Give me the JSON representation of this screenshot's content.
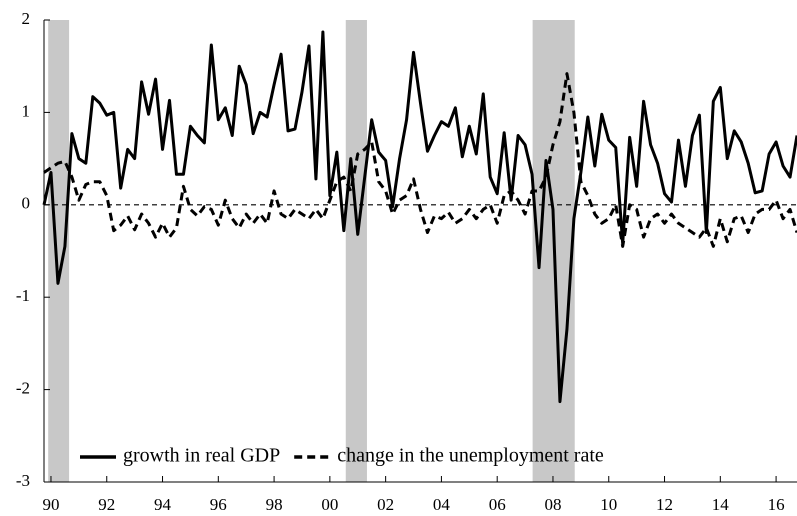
{
  "chart_data": {
    "type": "line",
    "x": [
      1989.75,
      1990,
      1990.25,
      1990.5,
      1990.75,
      1991,
      1991.25,
      1991.5,
      1991.75,
      1992,
      1992.25,
      1992.5,
      1992.75,
      1993,
      1993.25,
      1993.5,
      1993.75,
      1994,
      1994.25,
      1994.5,
      1994.75,
      1995,
      1995.25,
      1995.5,
      1995.75,
      1996,
      1996.25,
      1996.5,
      1996.75,
      1997,
      1997.25,
      1997.5,
      1997.75,
      1998,
      1998.25,
      1998.5,
      1998.75,
      1999,
      1999.25,
      1999.5,
      1999.75,
      2000,
      2000.25,
      2000.5,
      2000.75,
      2001,
      2001.25,
      2001.5,
      2001.75,
      2002,
      2002.25,
      2002.5,
      2002.75,
      2003,
      2003.25,
      2003.5,
      2003.75,
      2004,
      2004.25,
      2004.5,
      2004.75,
      2005,
      2005.25,
      2005.5,
      2005.75,
      2006,
      2006.25,
      2006.5,
      2006.75,
      2007,
      2007.25,
      2007.5,
      2007.75,
      2008,
      2008.25,
      2008.5,
      2008.75,
      2009,
      2009.25,
      2009.5,
      2009.75,
      2010,
      2010.25,
      2010.5,
      2010.75,
      2011,
      2011.25,
      2011.5,
      2011.75,
      2012,
      2012.25,
      2012.5,
      2012.75,
      2013,
      2013.25,
      2013.5,
      2013.75,
      2014,
      2014.25,
      2014.5,
      2014.75,
      2015,
      2015.25,
      2015.5,
      2015.75,
      2016,
      2016.25,
      2016.5,
      2016.75
    ],
    "series": [
      {
        "name": "growth in real GDP",
        "color": "#000000",
        "line_style": "solid",
        "values": [
          0.0,
          0.35,
          -0.85,
          -0.45,
          0.77,
          0.5,
          0.45,
          1.17,
          1.1,
          0.97,
          1.0,
          0.18,
          0.6,
          0.5,
          1.33,
          0.98,
          1.36,
          0.6,
          1.13,
          0.33,
          0.33,
          0.85,
          0.75,
          0.67,
          1.73,
          0.92,
          1.05,
          0.75,
          1.5,
          1.3,
          0.77,
          1.0,
          0.95,
          1.3,
          1.63,
          0.8,
          0.82,
          1.22,
          1.72,
          0.28,
          1.87,
          0.1,
          0.57,
          -0.28,
          0.5,
          -0.32,
          0.3,
          0.92,
          0.57,
          0.48,
          -0.02,
          0.5,
          0.92,
          1.65,
          1.1,
          0.58,
          0.75,
          0.9,
          0.85,
          1.05,
          0.52,
          0.85,
          0.55,
          1.2,
          0.3,
          0.12,
          0.78,
          0.05,
          0.75,
          0.65,
          0.33,
          -0.68,
          0.48,
          -0.05,
          -2.13,
          -1.35,
          -0.15,
          0.35,
          0.95,
          0.42,
          0.98,
          0.7,
          0.62,
          -0.42,
          0.73,
          0.2,
          1.12,
          0.65,
          0.45,
          0.12,
          0.03,
          0.7,
          0.2,
          0.75,
          0.97,
          -0.3,
          1.12,
          1.27,
          0.5,
          0.8,
          0.68,
          0.45,
          0.13,
          0.15,
          0.55,
          0.68,
          0.42,
          0.3,
          0.75
        ]
      },
      {
        "name": "change in the unemployment rate",
        "color": "#000000",
        "line_style": "dashed",
        "values": [
          0.35,
          0.4,
          0.45,
          0.47,
          0.3,
          0.05,
          0.22,
          0.25,
          0.25,
          0.1,
          -0.28,
          -0.22,
          -0.12,
          -0.27,
          -0.1,
          -0.2,
          -0.35,
          -0.2,
          -0.35,
          -0.25,
          0.2,
          -0.05,
          -0.12,
          -0.02,
          -0.05,
          -0.22,
          0.05,
          -0.15,
          -0.25,
          -0.1,
          -0.2,
          -0.1,
          -0.2,
          0.15,
          -0.1,
          -0.15,
          -0.05,
          -0.1,
          -0.15,
          -0.05,
          -0.15,
          0.05,
          0.25,
          0.3,
          0.15,
          0.55,
          0.6,
          0.68,
          0.25,
          0.15,
          -0.1,
          0.05,
          0.1,
          0.28,
          -0.05,
          -0.3,
          -0.12,
          -0.15,
          -0.08,
          -0.2,
          -0.15,
          -0.05,
          -0.15,
          -0.05,
          0.0,
          -0.2,
          0.1,
          0.15,
          0.05,
          -0.1,
          0.15,
          0.15,
          0.3,
          0.65,
          0.9,
          1.42,
          1.0,
          0.25,
          0.1,
          -0.1,
          -0.2,
          -0.15,
          0.0,
          -0.45,
          0.0,
          -0.05,
          -0.35,
          -0.15,
          -0.1,
          -0.2,
          -0.1,
          -0.2,
          -0.25,
          -0.3,
          -0.35,
          -0.25,
          -0.45,
          -0.15,
          -0.4,
          -0.15,
          -0.12,
          -0.3,
          -0.1,
          -0.05,
          -0.05,
          0.05,
          -0.15,
          -0.05,
          -0.3
        ]
      }
    ],
    "shaded_periods": [
      [
        1989.9,
        1990.65
      ],
      [
        2000.57,
        2001.33
      ],
      [
        2007.27,
        2008.78
      ]
    ],
    "shade_color": "#c8c8c8",
    "xlim": [
      1989.75,
      2016.75
    ],
    "xticks": [
      {
        "value": 1990,
        "label": "90"
      },
      {
        "value": 1992,
        "label": "92"
      },
      {
        "value": 1994,
        "label": "94"
      },
      {
        "value": 1996,
        "label": "96"
      },
      {
        "value": 1998,
        "label": "98"
      },
      {
        "value": 2000,
        "label": "00"
      },
      {
        "value": 2002,
        "label": "02"
      },
      {
        "value": 2004,
        "label": "04"
      },
      {
        "value": 2006,
        "label": "06"
      },
      {
        "value": 2008,
        "label": "08"
      },
      {
        "value": 2010,
        "label": "10"
      },
      {
        "value": 2012,
        "label": "12"
      },
      {
        "value": 2014,
        "label": "14"
      },
      {
        "value": 2016,
        "label": "16"
      }
    ],
    "ylim": [
      -3,
      2
    ],
    "yticks": [
      -3,
      -2,
      -1,
      0,
      1,
      2
    ],
    "zero_line": true,
    "legend": "bottom"
  }
}
